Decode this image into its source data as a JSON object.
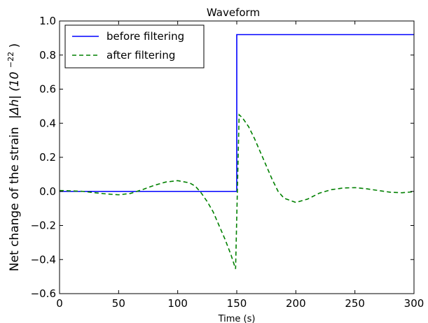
{
  "chart_data": {
    "type": "line",
    "title": "Waveform",
    "xlabel": "Time (s)",
    "ylabel_text": "Net change of the strain",
    "ylabel_math": "|Δh| (10",
    "ylabel_exp": "−22",
    "ylabel_close": ")",
    "xlim": [
      0,
      300
    ],
    "ylim": [
      -0.6,
      1.0
    ],
    "xticks": [
      "0",
      "50",
      "100",
      "150",
      "200",
      "250",
      "300"
    ],
    "xtick_values": [
      0,
      50,
      100,
      150,
      200,
      250,
      300
    ],
    "yticks": [
      "−0.6",
      "−0.4",
      "−0.2",
      "0.0",
      "0.2",
      "0.4",
      "0.6",
      "0.8",
      "1.0"
    ],
    "ytick_values": [
      -0.6,
      -0.4,
      -0.2,
      0.0,
      0.2,
      0.4,
      0.6,
      0.8,
      1.0
    ],
    "grid": false,
    "legend_position": "top-left",
    "series": [
      {
        "name": "before filtering",
        "color": "#0000ff",
        "style": "solid",
        "x": [
          0,
          150,
          150,
          300
        ],
        "y": [
          0,
          0,
          0.92,
          0.92
        ]
      },
      {
        "name": "after filtering",
        "color": "#008000",
        "style": "dashed",
        "x": [
          0,
          10,
          20,
          30,
          40,
          50,
          60,
          70,
          80,
          90,
          100,
          110,
          115,
          120,
          125,
          130,
          135,
          140,
          145,
          149,
          150,
          152,
          155,
          160,
          165,
          170,
          175,
          180,
          185,
          190,
          200,
          210,
          220,
          230,
          240,
          250,
          260,
          270,
          280,
          290,
          300
        ],
        "y": [
          0.005,
          0.003,
          0.0,
          -0.008,
          -0.015,
          -0.02,
          -0.012,
          0.01,
          0.035,
          0.055,
          0.063,
          0.05,
          0.03,
          -0.01,
          -0.06,
          -0.12,
          -0.2,
          -0.28,
          -0.37,
          -0.455,
          -0.15,
          0.45,
          0.43,
          0.38,
          0.31,
          0.23,
          0.15,
          0.07,
          0.0,
          -0.04,
          -0.065,
          -0.045,
          -0.01,
          0.01,
          0.02,
          0.022,
          0.015,
          0.005,
          -0.005,
          -0.008,
          -0.002
        ]
      }
    ]
  }
}
